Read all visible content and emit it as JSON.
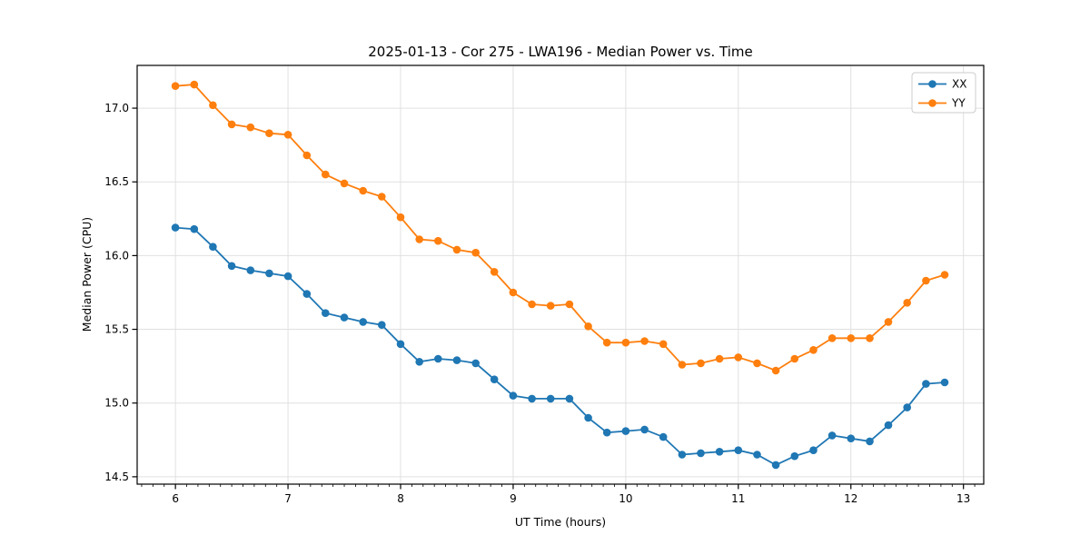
{
  "figure": {
    "background": "#ffffff"
  },
  "chart_data": {
    "type": "line",
    "title": "2025-01-13 - Cor 275 - LWA196 - Median Power vs. Time",
    "xlabel": "UT Time (hours)",
    "ylabel": "Median Power (CPU)",
    "xlim": [
      5.66,
      13.18
    ],
    "ylim": [
      14.45,
      17.29
    ],
    "xticks": [
      6,
      7,
      8,
      9,
      10,
      11,
      12,
      13
    ],
    "xtick_labels": [
      "6",
      "7",
      "8",
      "9",
      "10",
      "11",
      "12",
      "13"
    ],
    "x_minor_tick_step": 0.1,
    "yticks": [
      14.5,
      15.0,
      15.5,
      16.0,
      16.5,
      17.0
    ],
    "ytick_labels": [
      "14.5",
      "15.0",
      "15.5",
      "16.0",
      "16.5",
      "17.0"
    ],
    "grid": true,
    "grid_color": "#e0e0e0",
    "legend": {
      "position": "upper right",
      "entries": [
        "XX",
        "YY"
      ]
    },
    "x": [
      6.0,
      6.167,
      6.333,
      6.5,
      6.667,
      6.833,
      7.0,
      7.167,
      7.333,
      7.5,
      7.667,
      7.833,
      8.0,
      8.167,
      8.333,
      8.5,
      8.667,
      8.833,
      9.0,
      9.167,
      9.333,
      9.5,
      9.667,
      9.833,
      10.0,
      10.167,
      10.333,
      10.5,
      10.667,
      10.833,
      11.0,
      11.167,
      11.333,
      11.5,
      11.667,
      11.833,
      12.0,
      12.167,
      12.333,
      12.5,
      12.667,
      12.833
    ],
    "series": [
      {
        "name": "XX",
        "color": "#1f77b4",
        "marker": "circle",
        "values": [
          16.19,
          16.18,
          16.06,
          15.93,
          15.9,
          15.88,
          15.86,
          15.74,
          15.61,
          15.58,
          15.55,
          15.53,
          15.4,
          15.28,
          15.3,
          15.29,
          15.27,
          15.16,
          15.05,
          15.03,
          15.03,
          15.03,
          14.9,
          14.8,
          14.81,
          14.82,
          14.77,
          14.65,
          14.66,
          14.67,
          14.68,
          14.65,
          14.58,
          14.64,
          14.68,
          14.78,
          14.76,
          14.74,
          14.85,
          14.97,
          15.13,
          15.14
        ]
      },
      {
        "name": "YY",
        "color": "#ff7f0e",
        "marker": "circle",
        "values": [
          17.15,
          17.16,
          17.02,
          16.89,
          16.87,
          16.83,
          16.82,
          16.68,
          16.55,
          16.49,
          16.44,
          16.4,
          16.26,
          16.11,
          16.1,
          16.04,
          16.02,
          15.89,
          15.75,
          15.67,
          15.66,
          15.67,
          15.52,
          15.41,
          15.41,
          15.42,
          15.4,
          15.26,
          15.27,
          15.3,
          15.31,
          15.27,
          15.22,
          15.3,
          15.36,
          15.44,
          15.44,
          15.44,
          15.55,
          15.68,
          15.83,
          15.87
        ]
      }
    ]
  }
}
